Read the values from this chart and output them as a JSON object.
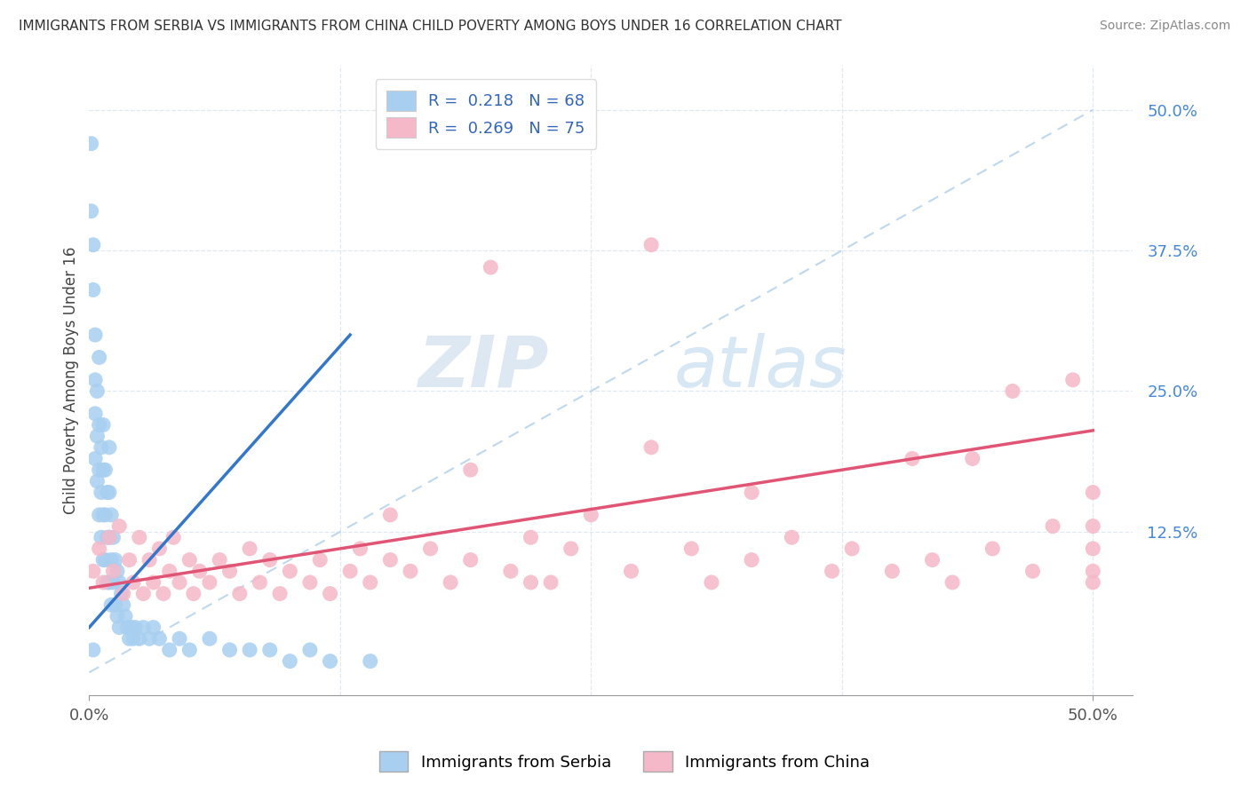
{
  "title": "IMMIGRANTS FROM SERBIA VS IMMIGRANTS FROM CHINA CHILD POVERTY AMONG BOYS UNDER 16 CORRELATION CHART",
  "source": "Source: ZipAtlas.com",
  "ylabel": "Child Poverty Among Boys Under 16",
  "ytick_vals": [
    0.0,
    0.125,
    0.25,
    0.375,
    0.5
  ],
  "ytick_labels": [
    "",
    "12.5%",
    "25.0%",
    "37.5%",
    "50.0%"
  ],
  "xtick_vals": [
    0.0,
    0.5
  ],
  "xtick_labels": [
    "0.0%",
    "50.0%"
  ],
  "xlim": [
    0.0,
    0.52
  ],
  "ylim": [
    -0.02,
    0.54
  ],
  "serbia_R": 0.218,
  "serbia_N": 68,
  "china_R": 0.269,
  "china_N": 75,
  "serbia_color": "#a8cff0",
  "china_color": "#f5b8c8",
  "serbia_line_color": "#3377cc",
  "china_line_color": "#e05575",
  "diag_color": "#c0d8ee",
  "serbia_scatter_x": [
    0.001,
    0.001,
    0.002,
    0.002,
    0.003,
    0.003,
    0.003,
    0.003,
    0.004,
    0.004,
    0.004,
    0.005,
    0.005,
    0.005,
    0.005,
    0.006,
    0.006,
    0.006,
    0.007,
    0.007,
    0.007,
    0.007,
    0.008,
    0.008,
    0.008,
    0.009,
    0.009,
    0.009,
    0.01,
    0.01,
    0.01,
    0.01,
    0.011,
    0.011,
    0.011,
    0.012,
    0.012,
    0.013,
    0.013,
    0.014,
    0.014,
    0.015,
    0.015,
    0.016,
    0.017,
    0.018,
    0.019,
    0.02,
    0.021,
    0.022,
    0.023,
    0.025,
    0.027,
    0.03,
    0.032,
    0.035,
    0.04,
    0.045,
    0.05,
    0.06,
    0.07,
    0.08,
    0.09,
    0.1,
    0.11,
    0.12,
    0.14,
    0.002
  ],
  "serbia_scatter_y": [
    0.47,
    0.41,
    0.38,
    0.34,
    0.3,
    0.26,
    0.23,
    0.19,
    0.25,
    0.21,
    0.17,
    0.28,
    0.22,
    0.18,
    0.14,
    0.2,
    0.16,
    0.12,
    0.22,
    0.18,
    0.14,
    0.1,
    0.18,
    0.14,
    0.1,
    0.16,
    0.12,
    0.08,
    0.2,
    0.16,
    0.12,
    0.08,
    0.14,
    0.1,
    0.06,
    0.12,
    0.08,
    0.1,
    0.06,
    0.09,
    0.05,
    0.08,
    0.04,
    0.07,
    0.06,
    0.05,
    0.04,
    0.03,
    0.04,
    0.03,
    0.04,
    0.03,
    0.04,
    0.03,
    0.04,
    0.03,
    0.02,
    0.03,
    0.02,
    0.03,
    0.02,
    0.02,
    0.02,
    0.01,
    0.02,
    0.01,
    0.01,
    0.02
  ],
  "china_scatter_x": [
    0.002,
    0.005,
    0.007,
    0.01,
    0.012,
    0.015,
    0.017,
    0.02,
    0.022,
    0.025,
    0.027,
    0.03,
    0.032,
    0.035,
    0.037,
    0.04,
    0.042,
    0.045,
    0.05,
    0.052,
    0.055,
    0.06,
    0.065,
    0.07,
    0.075,
    0.08,
    0.085,
    0.09,
    0.095,
    0.1,
    0.11,
    0.115,
    0.12,
    0.13,
    0.135,
    0.14,
    0.15,
    0.16,
    0.17,
    0.18,
    0.19,
    0.2,
    0.21,
    0.22,
    0.23,
    0.24,
    0.25,
    0.27,
    0.28,
    0.3,
    0.31,
    0.33,
    0.35,
    0.37,
    0.38,
    0.4,
    0.41,
    0.42,
    0.43,
    0.44,
    0.45,
    0.46,
    0.47,
    0.48,
    0.49,
    0.5,
    0.5,
    0.5,
    0.5,
    0.5,
    0.28,
    0.33,
    0.15,
    0.19,
    0.22
  ],
  "china_scatter_y": [
    0.09,
    0.11,
    0.08,
    0.12,
    0.09,
    0.13,
    0.07,
    0.1,
    0.08,
    0.12,
    0.07,
    0.1,
    0.08,
    0.11,
    0.07,
    0.09,
    0.12,
    0.08,
    0.1,
    0.07,
    0.09,
    0.08,
    0.1,
    0.09,
    0.07,
    0.11,
    0.08,
    0.1,
    0.07,
    0.09,
    0.08,
    0.1,
    0.07,
    0.09,
    0.11,
    0.08,
    0.1,
    0.09,
    0.11,
    0.08,
    0.1,
    0.36,
    0.09,
    0.12,
    0.08,
    0.11,
    0.14,
    0.09,
    0.38,
    0.11,
    0.08,
    0.1,
    0.12,
    0.09,
    0.11,
    0.09,
    0.19,
    0.1,
    0.08,
    0.19,
    0.11,
    0.25,
    0.09,
    0.13,
    0.26,
    0.08,
    0.11,
    0.13,
    0.16,
    0.09,
    0.2,
    0.16,
    0.14,
    0.18,
    0.08
  ],
  "watermark_zip": "ZIP",
  "watermark_atlas": "atlas",
  "background_color": "#ffffff",
  "grid_color": "#e0e8f0"
}
